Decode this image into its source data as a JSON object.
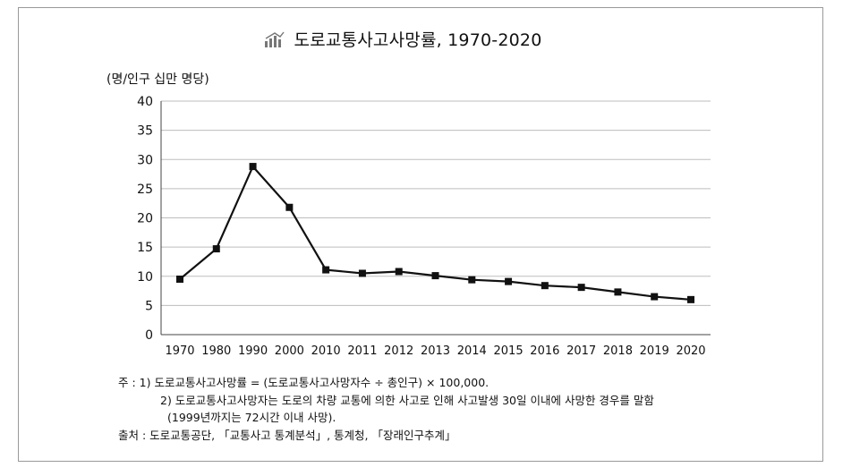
{
  "title": "도로교통사고사망률, 1970-2020",
  "icon": "bar-chart-icon",
  "chart_data": {
    "type": "line",
    "categories": [
      "1970",
      "1980",
      "1990",
      "2000",
      "2010",
      "2011",
      "2012",
      "2013",
      "2014",
      "2015",
      "2016",
      "2017",
      "2018",
      "2019",
      "2020"
    ],
    "series": [
      {
        "values": [
          9.5,
          14.7,
          28.8,
          21.8,
          11.1,
          10.5,
          10.8,
          10.1,
          9.4,
          9.1,
          8.4,
          8.1,
          7.3,
          6.5,
          6.0
        ]
      }
    ],
    "ylabel": "(명/인구 십만 명당)",
    "ylim": [
      0,
      40
    ],
    "yticks": [
      0,
      5,
      10,
      15,
      20,
      25,
      30,
      35,
      40
    ],
    "grid": "horizontal",
    "color": "#111111"
  },
  "notes": {
    "note1": "주   : 1) 도로교통사고사망률 = (도로교통사고사망자수 ÷ 총인구) × 100,000.",
    "note2": "2) 도로교통사고사망자는 도로의 차량 교통에 의한 사고로 인해 사고발생 30일 이내에 사망한 경우를 말함",
    "note3": "(1999년까지는 72시간 이내 사망).",
    "source": "출처 : 도로교통공단, 「교통사고 통계분석」, 통계청, 「장래인구추계」"
  }
}
